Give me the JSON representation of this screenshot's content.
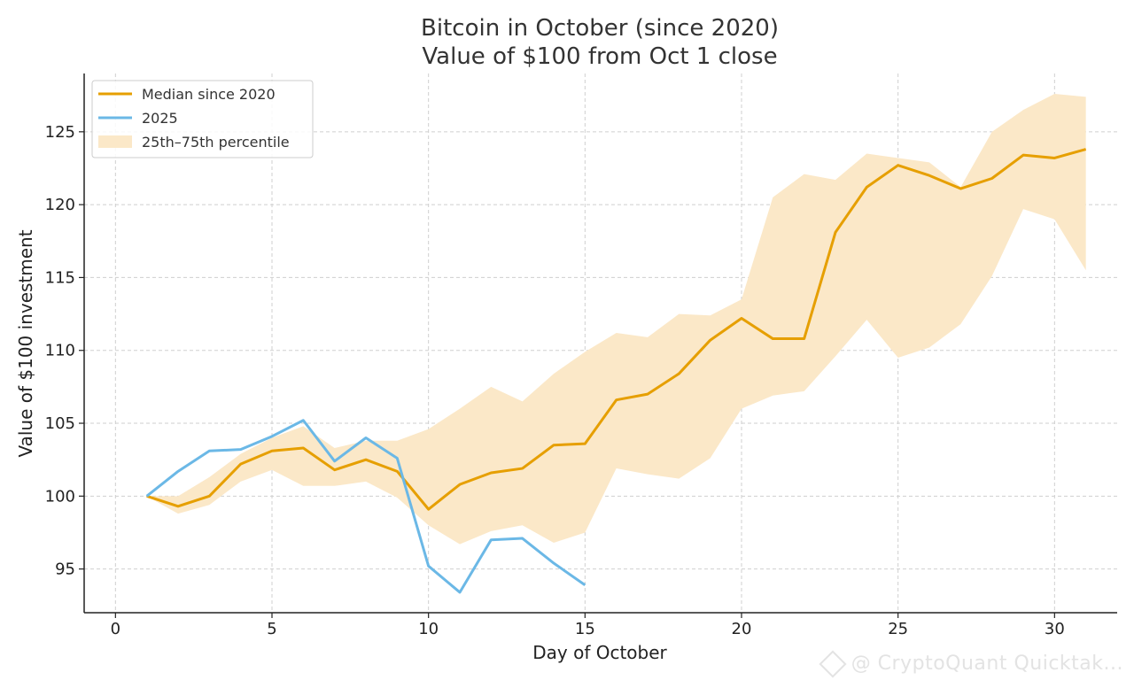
{
  "chart_data": {
    "type": "line",
    "title": "Bitcoin in October (since 2020)",
    "subtitle": "Value of $100 from Oct 1 close",
    "xlabel": "Day of October",
    "ylabel": "Value of $100 investment",
    "xlim": [
      -1,
      32
    ],
    "ylim": [
      92,
      129
    ],
    "xticks": [
      0,
      5,
      10,
      15,
      20,
      25,
      30
    ],
    "yticks": [
      95,
      100,
      105,
      110,
      115,
      120,
      125
    ],
    "grid": true,
    "legend_position": "top-left",
    "colors": {
      "median": "#E69F00",
      "y2025": "#6BB8E6",
      "band": "#FBE8C8"
    },
    "series": [
      {
        "name": "Median since 2020",
        "x": [
          1,
          2,
          3,
          4,
          5,
          6,
          7,
          8,
          9,
          10,
          11,
          12,
          13,
          14,
          15,
          16,
          17,
          18,
          19,
          20,
          21,
          22,
          23,
          24,
          25,
          26,
          27,
          28,
          29,
          30,
          31
        ],
        "values": [
          100,
          99.3,
          100.0,
          102.2,
          103.1,
          103.3,
          101.8,
          102.5,
          101.7,
          99.1,
          100.8,
          101.6,
          101.9,
          103.5,
          103.6,
          106.6,
          107.0,
          108.4,
          110.7,
          112.2,
          110.8,
          110.8,
          118.1,
          121.2,
          122.7,
          122.0,
          121.1,
          121.8,
          123.4,
          123.2,
          123.8
        ]
      },
      {
        "name": "2025",
        "x": [
          1,
          2,
          3,
          4,
          5,
          6,
          7,
          8,
          9,
          10,
          11,
          12,
          13,
          14,
          15
        ],
        "values": [
          100,
          101.7,
          103.1,
          103.2,
          104.1,
          105.2,
          102.4,
          104.0,
          102.6,
          95.2,
          93.4,
          97.0,
          97.1,
          95.4,
          93.9
        ]
      }
    ],
    "band": {
      "name": "25th–75th percentile",
      "x": [
        1,
        2,
        3,
        4,
        5,
        6,
        7,
        8,
        9,
        10,
        11,
        12,
        13,
        14,
        15,
        16,
        17,
        18,
        19,
        20,
        21,
        22,
        23,
        24,
        25,
        26,
        27,
        28,
        29,
        30,
        31
      ],
      "lower": [
        100,
        98.8,
        99.4,
        101.0,
        101.8,
        100.7,
        100.7,
        101.0,
        99.9,
        98.0,
        96.7,
        97.6,
        98.0,
        96.8,
        97.5,
        101.9,
        101.5,
        101.2,
        102.6,
        106.0,
        106.9,
        107.2,
        109.6,
        112.1,
        109.5,
        110.2,
        111.8,
        115.1,
        119.7,
        119.0,
        115.5
      ],
      "upper": [
        100,
        100.0,
        101.3,
        102.9,
        104.0,
        104.8,
        103.3,
        103.8,
        103.8,
        104.6,
        106.0,
        107.5,
        106.5,
        108.4,
        109.9,
        111.2,
        110.9,
        112.5,
        112.4,
        113.5,
        120.5,
        122.1,
        121.7,
        123.5,
        123.2,
        122.9,
        121.2,
        125.0,
        126.5,
        127.6,
        127.4
      ]
    }
  },
  "watermark": {
    "text": "@ CryptoQuant Quicktak..."
  }
}
